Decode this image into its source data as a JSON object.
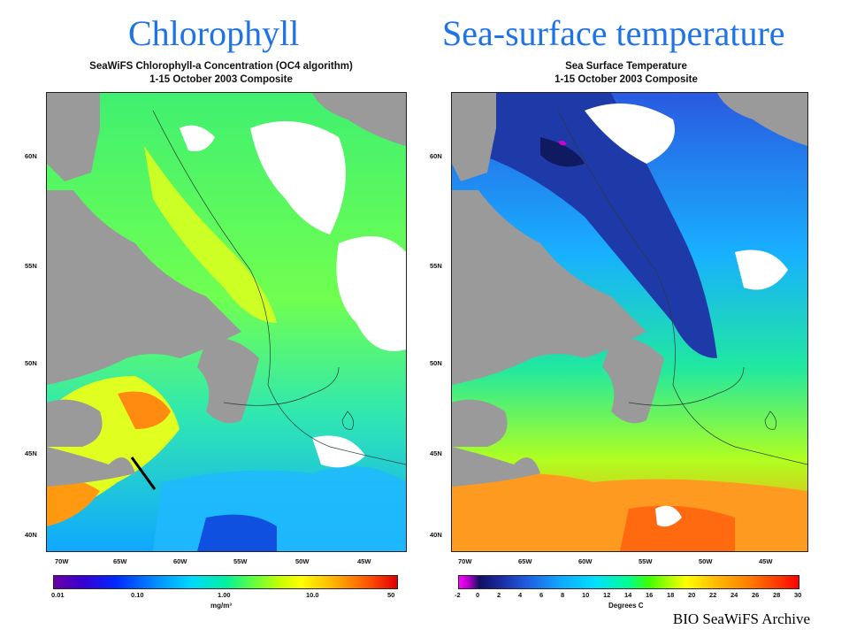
{
  "headings": {
    "left": "Chlorophyll",
    "right": "Sea-surface temperature"
  },
  "chlorophyll_map": {
    "title": "SeaWiFS Chlorophyll-a Concentration (OC4 algorithm)",
    "period": "1-15 October 2003 Composite",
    "lat_labels": [
      "60N",
      "55N",
      "50N",
      "45N",
      "40N"
    ],
    "lon_labels": [
      "70W",
      "65W",
      "60W",
      "55W",
      "50W",
      "45W"
    ],
    "colorbar": {
      "ticks": [
        "0.01",
        "0.10",
        "1.00",
        "10.0",
        "50"
      ],
      "unit": "mg/m³",
      "scale": "log"
    }
  },
  "sst_map": {
    "title": "Sea Surface Temperature",
    "period": "1-15 October 2003 Composite",
    "lat_labels": [
      "60N",
      "55N",
      "50N",
      "45N",
      "40N"
    ],
    "lon_labels": [
      "70W",
      "65W",
      "60W",
      "55W",
      "50W",
      "45W"
    ],
    "colorbar": {
      "ticks": [
        "-2",
        "0",
        "2",
        "4",
        "6",
        "8",
        "10",
        "12",
        "14",
        "16",
        "18",
        "20",
        "22",
        "24",
        "26",
        "28",
        "30"
      ],
      "unit": "Degrees C"
    }
  },
  "credit": "BIO SeaWiFS Archive",
  "colors": {
    "heading": "#1e73e6",
    "land": "#9a9a9a",
    "cloud": "#ffffff"
  }
}
